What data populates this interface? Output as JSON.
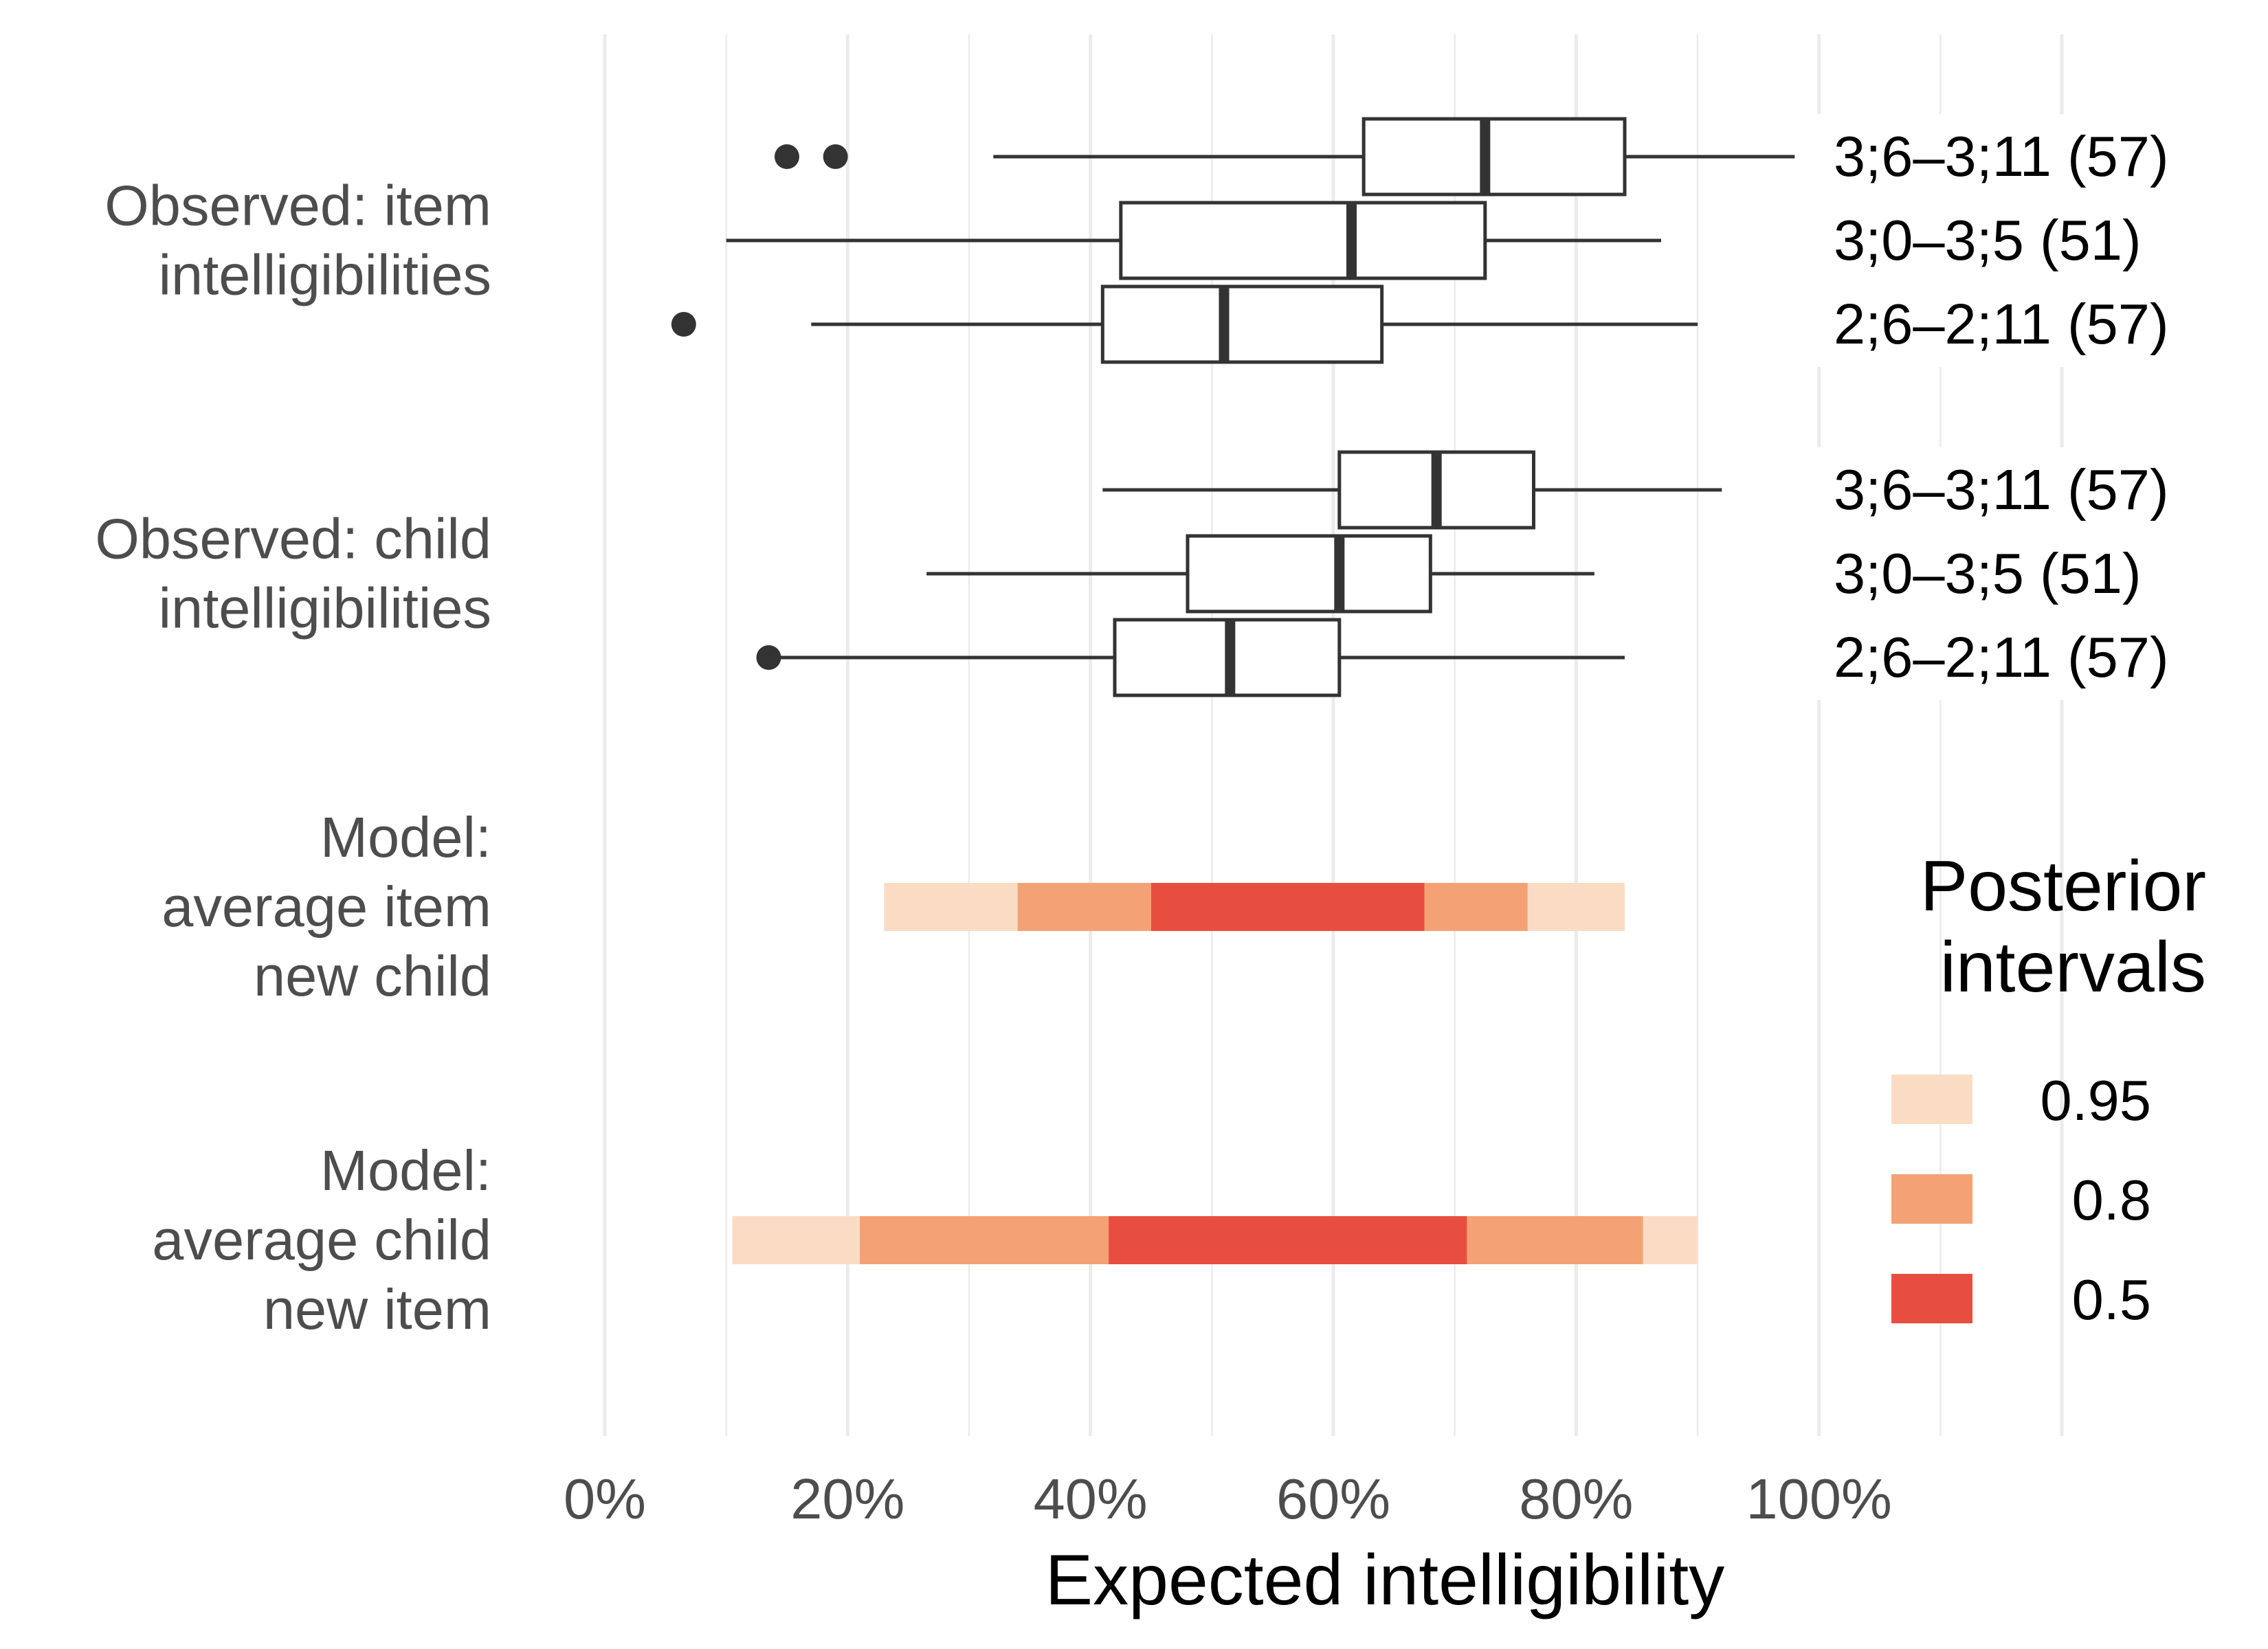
{
  "chart_data": {
    "type": "boxplot-interval",
    "xlabel": "Expected intelligibility",
    "xlim": [
      0,
      1.2
    ],
    "x_ticks": [
      {
        "value": 0,
        "label": "0%"
      },
      {
        "value": 0.2,
        "label": "20%"
      },
      {
        "value": 0.4,
        "label": "40%"
      },
      {
        "value": 0.6,
        "label": "60%"
      },
      {
        "value": 0.8,
        "label": "80%"
      },
      {
        "value": 1.0,
        "label": "100%"
      }
    ],
    "grid": true,
    "rows": [
      {
        "label_lines": [
          "Observed: item",
          "intelligibilities"
        ],
        "kind": "box",
        "groups": [
          {
            "label": "3;6–3;11 (57)",
            "min": 0.32,
            "q1": 0.625,
            "median": 0.725,
            "q3": 0.84,
            "max": 0.98,
            "outliers": [
              0.15,
              0.19
            ]
          },
          {
            "label": "3;0–3;5 (51)",
            "min": 0.1,
            "q1": 0.425,
            "median": 0.615,
            "q3": 0.725,
            "max": 0.87,
            "outliers": []
          },
          {
            "label": "2;6–2;11 (57)",
            "min": 0.17,
            "q1": 0.41,
            "median": 0.51,
            "q3": 0.64,
            "max": 0.9,
            "outliers": [
              0.065
            ]
          }
        ]
      },
      {
        "label_lines": [
          "Observed: child",
          "intelligibilities"
        ],
        "kind": "box",
        "groups": [
          {
            "label": "3;6–3;11 (57)",
            "min": 0.41,
            "q1": 0.605,
            "median": 0.685,
            "q3": 0.765,
            "max": 0.92,
            "outliers": []
          },
          {
            "label": "3;0–3;5 (51)",
            "min": 0.265,
            "q1": 0.48,
            "median": 0.605,
            "q3": 0.68,
            "max": 0.815,
            "outliers": []
          },
          {
            "label": "2;6–2;11 (57)",
            "min": 0.14,
            "q1": 0.42,
            "median": 0.515,
            "q3": 0.605,
            "max": 0.84,
            "outliers": [
              0.135
            ]
          }
        ]
      },
      {
        "label_lines": [
          "Model:",
          "average item",
          "new child"
        ],
        "kind": "interval",
        "intervals": [
          {
            "level": "0.95",
            "low": 0.23,
            "high": 0.84
          },
          {
            "level": "0.8",
            "low": 0.34,
            "high": 0.76
          },
          {
            "level": "0.5",
            "low": 0.45,
            "high": 0.675
          }
        ]
      },
      {
        "label_lines": [
          "Model:",
          "average child",
          "new item"
        ],
        "kind": "interval",
        "intervals": [
          {
            "level": "0.95",
            "low": 0.105,
            "high": 0.9
          },
          {
            "level": "0.8",
            "low": 0.21,
            "high": 0.855
          },
          {
            "level": "0.5",
            "low": 0.415,
            "high": 0.71
          }
        ]
      }
    ],
    "legend": {
      "title_lines": [
        "Posterior",
        "intervals"
      ],
      "placement": "right",
      "entries": [
        {
          "label": "0.95",
          "color": "#fadcc4"
        },
        {
          "label": "0.8",
          "color": "#f4a275"
        },
        {
          "label": "0.5",
          "color": "#e84e3f"
        }
      ]
    }
  }
}
